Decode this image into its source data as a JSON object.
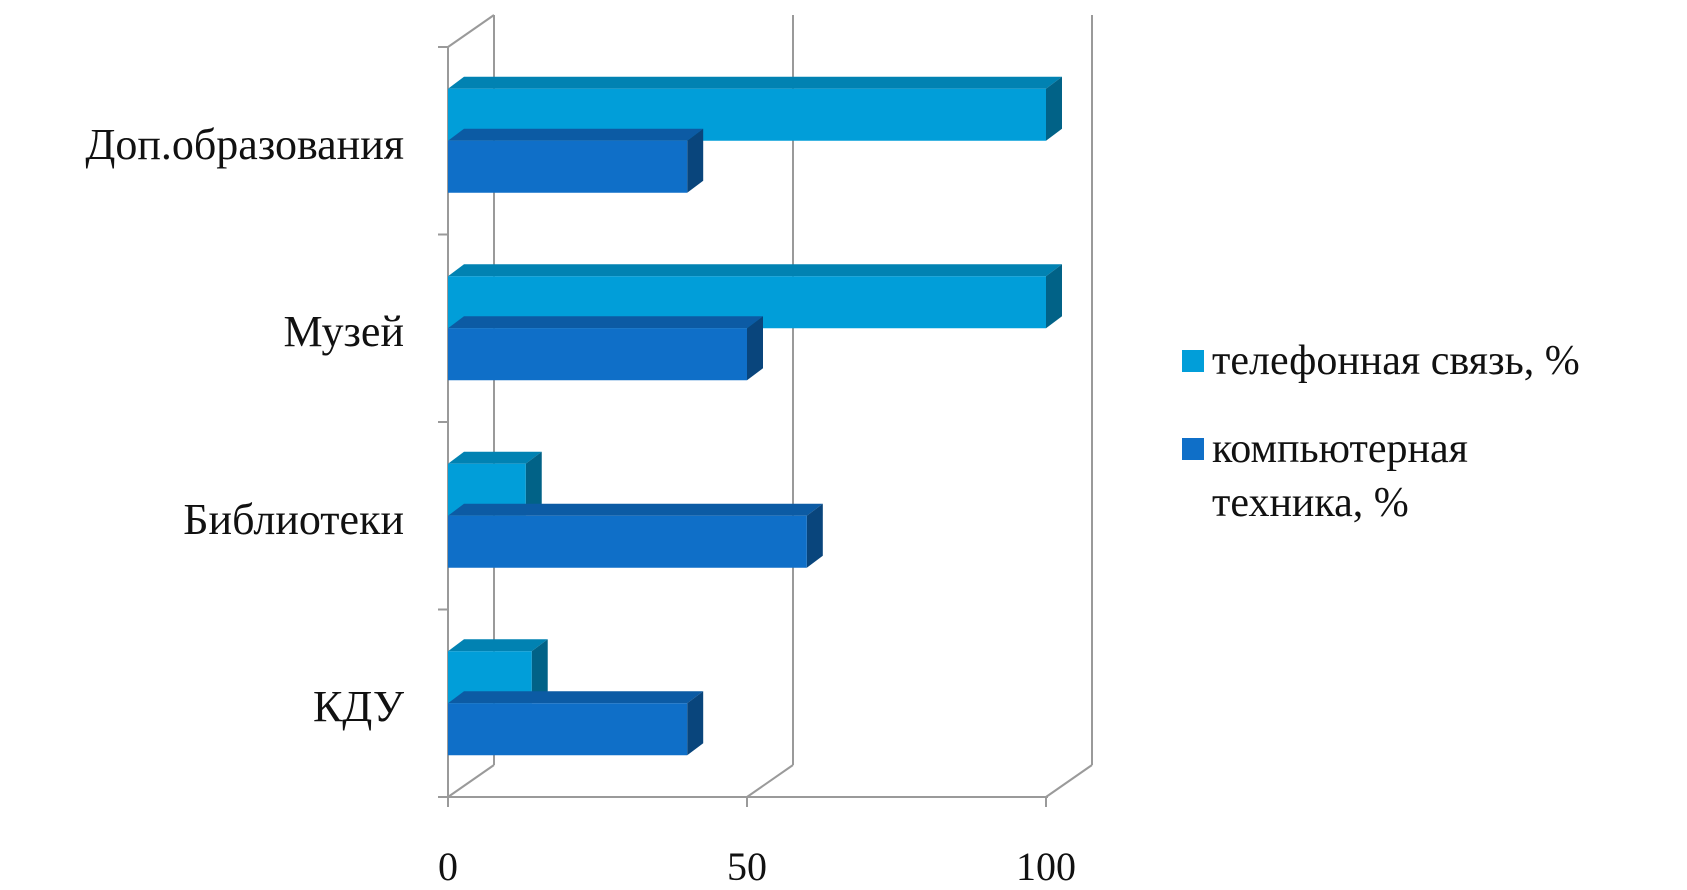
{
  "chart_data": {
    "type": "bar",
    "orientation": "horizontal",
    "three_d": true,
    "categories": [
      "Доп.образования",
      "Музей",
      "Библиотеки",
      "КДУ"
    ],
    "series": [
      {
        "name": "телефонная связь, %",
        "color": "#019ed9",
        "values": [
          100,
          100,
          13,
          14
        ]
      },
      {
        "name": "компьютерная техника, %",
        "color": "#0f6fc8",
        "values": [
          40,
          50,
          60,
          40
        ]
      }
    ],
    "xticks": [
      "0",
      "50",
      "100"
    ],
    "xlim": [
      0,
      100
    ],
    "grid": true,
    "legend_position": "right"
  }
}
